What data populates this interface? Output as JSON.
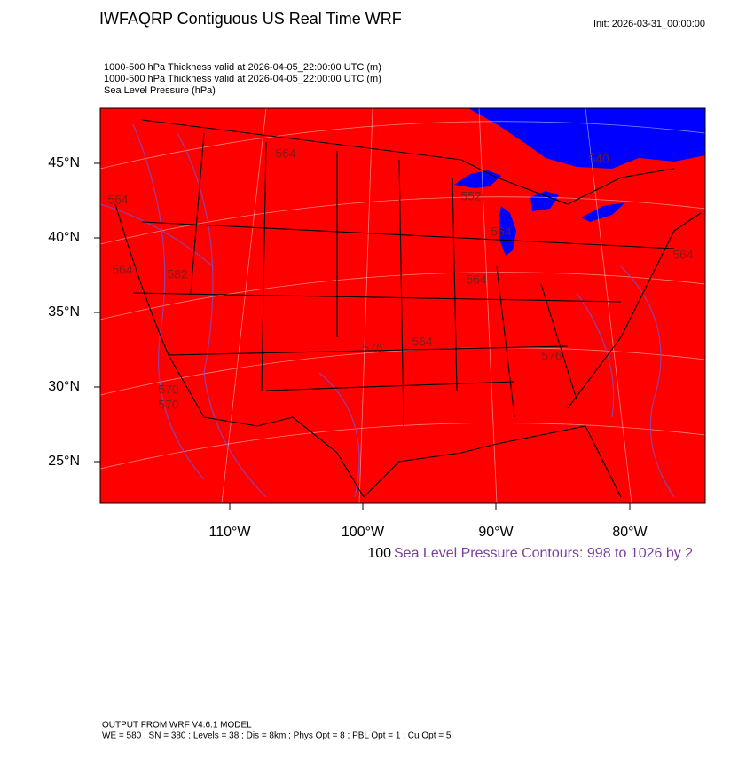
{
  "header": {
    "title": "IWFAQRP Contiguous US Real Time WRF",
    "init": "Init: 2026-03-31_00:00:00"
  },
  "fields": [
    "1000-500 hPa Thickness valid at 2026-04-05_22:00:00 UTC   (m)",
    "1000-500 hPa Thickness valid at 2026-04-05_22:00:00 UTC   (m)",
    "Sea Level Pressure   (hPa)"
  ],
  "map": {
    "lat_labels": [
      "45°N",
      "40°N",
      "35°N",
      "30°N",
      "25°N"
    ],
    "lon_labels": [
      "110°W",
      "100°W",
      "90°W",
      "80°W"
    ],
    "contour_labels": [
      "564",
      "564",
      "552",
      "540",
      "564",
      "570",
      "570",
      "576",
      "564",
      "564",
      "576",
      "582",
      "564",
      "564"
    ]
  },
  "legend": {
    "scale": "100",
    "text": "Sea Level Pressure Contours: 998 to 1026 by 2"
  },
  "footer": {
    "line1": "OUTPUT FROM WRF V4.6.1 MODEL",
    "line2": "WE = 580 ; SN = 380 ; Levels = 38 ; Dis = 8km ; Phys Opt = 8 ; PBL Opt = 1 ; Cu Opt = 5"
  }
}
